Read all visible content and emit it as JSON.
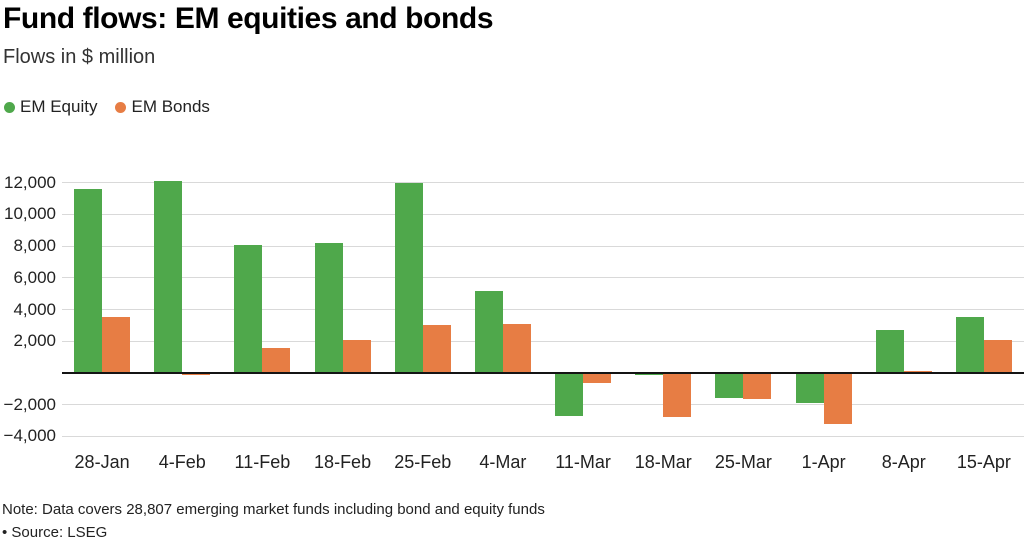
{
  "header": {
    "title": "Fund flows: EM equities and bonds",
    "subtitle": "Flows in $ million"
  },
  "chart_data": {
    "type": "bar",
    "title": "Fund flows: EM equities and bonds",
    "subtitle": "Flows in $ million",
    "xlabel": "",
    "ylabel": "Flows in $ million",
    "categories": [
      "28-Jan",
      "4-Feb",
      "11-Feb",
      "18-Feb",
      "25-Feb",
      "4-Mar",
      "11-Mar",
      "18-Mar",
      "25-Mar",
      "1-Apr",
      "8-Apr",
      "15-Apr"
    ],
    "series": [
      {
        "name": "EM Equity",
        "color": "#4fa84b",
        "values": [
          11600,
          12100,
          8100,
          8200,
          12000,
          5200,
          -2700,
          -150,
          -1600,
          -1900,
          2700,
          3550
        ]
      },
      {
        "name": "EM Bonds",
        "color": "#e77d44",
        "values": [
          3500,
          -100,
          1600,
          2100,
          3000,
          3100,
          -650,
          -2800,
          -1650,
          -3200,
          150,
          2100
        ]
      }
    ],
    "ylim": [
      -4100,
      12800
    ],
    "yticks": [
      12000,
      10000,
      8000,
      6000,
      4000,
      2000,
      -2000,
      -4000
    ],
    "grid": true,
    "legend_position": "top-left",
    "gridline_color": "#d9d9d9",
    "zero_line_color": "#141414"
  },
  "footer": {
    "note": "Note: Data covers 28,807 emerging market funds including bond and equity funds",
    "source": "• Source: LSEG"
  }
}
